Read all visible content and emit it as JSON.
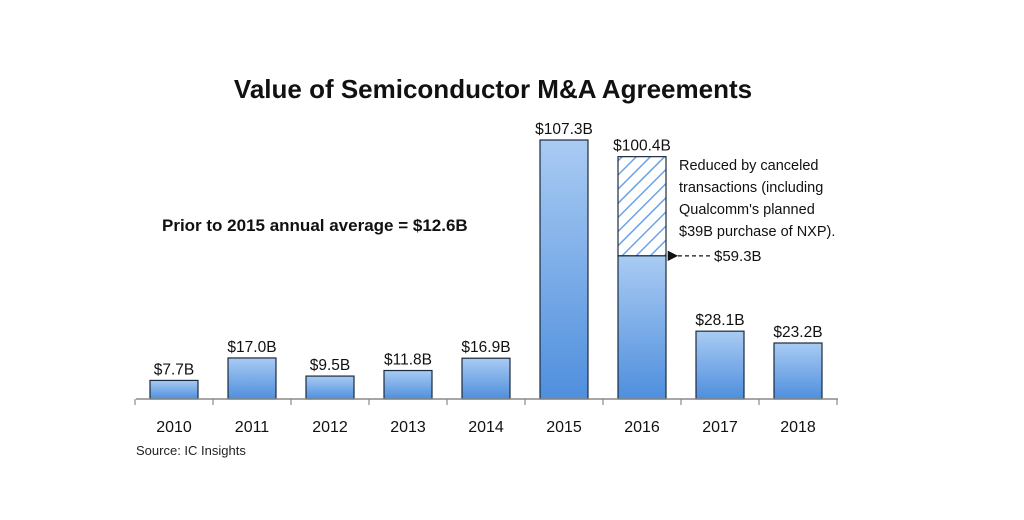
{
  "chart_data": {
    "type": "bar",
    "title": "Value of Semiconductor M&A Agreements",
    "categories": [
      "2010",
      "2011",
      "2012",
      "2013",
      "2014",
      "2015",
      "2016",
      "2017",
      "2018"
    ],
    "values": [
      7.7,
      17.0,
      9.5,
      11.8,
      16.9,
      107.3,
      100.4,
      28.1,
      23.2
    ],
    "value_labels": [
      "$7.7B",
      "$17.0B",
      "$9.5B",
      "$11.8B",
      "$16.9B",
      "$107.3B",
      "$100.4B",
      "$28.1B",
      "$23.2B"
    ],
    "reduced_value": {
      "category": "2016",
      "value": 59.3,
      "label": "$59.3B"
    },
    "annotations": {
      "average_text": "Prior to 2015 annual average = $12.6B",
      "reduced_note": [
        "Reduced by canceled",
        "transactions (including",
        "Qualcomm's planned",
        "$39B purchase of NXP)."
      ]
    },
    "source": "Source: IC Insights",
    "ylim": [
      0,
      110
    ],
    "grid": false,
    "legend": "none",
    "colors": {
      "bar_top": "#a9cbf3",
      "bar_bottom": "#4f8fdd",
      "bar_stroke": "#1b2a3d",
      "hatch": "#6aa3e6",
      "text": "#111111",
      "axis": "#8a8a8a"
    }
  }
}
